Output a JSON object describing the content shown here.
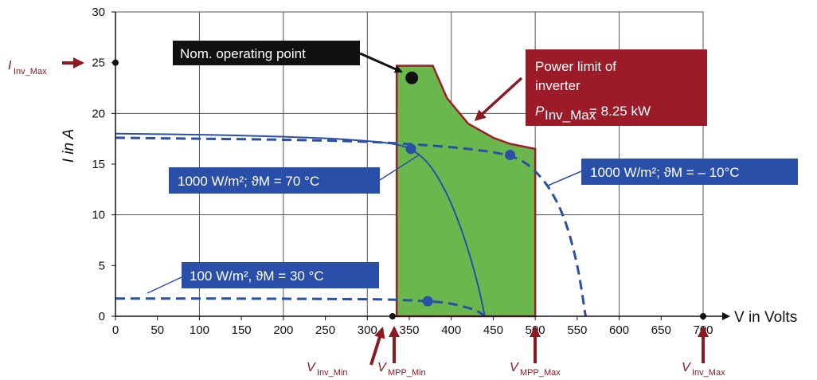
{
  "chart_data": {
    "type": "line",
    "xlabel": "V in Volts",
    "ylabel": "I in A",
    "xlim": [
      0,
      700
    ],
    "ylim": [
      0,
      30
    ],
    "x_ticks": [
      0,
      50,
      100,
      150,
      200,
      250,
      300,
      350,
      400,
      450,
      500,
      550,
      600,
      650,
      700
    ],
    "y_ticks": [
      0,
      5,
      10,
      15,
      20,
      25,
      30
    ],
    "grid": true,
    "series": [
      {
        "name": "1000 W/m²; ϑM = 70 °C",
        "style": "solid",
        "color": "#2a4fa8",
        "points": [
          [
            0,
            18.0
          ],
          [
            100,
            17.9
          ],
          [
            200,
            17.7
          ],
          [
            280,
            17.4
          ],
          [
            330,
            17.0
          ],
          [
            355,
            16.3
          ],
          [
            375,
            14.8
          ],
          [
            395,
            12.0
          ],
          [
            410,
            9.0
          ],
          [
            422,
            6.0
          ],
          [
            432,
            3.0
          ],
          [
            440,
            0
          ]
        ]
      },
      {
        "name": "1000 W/m²; ϑM = – 10°C",
        "style": "dashed",
        "color": "#2a4fa8",
        "points": [
          [
            0,
            17.6
          ],
          [
            100,
            17.5
          ],
          [
            200,
            17.4
          ],
          [
            300,
            17.2
          ],
          [
            380,
            16.8
          ],
          [
            430,
            16.4
          ],
          [
            465,
            15.9
          ],
          [
            490,
            15.0
          ],
          [
            515,
            12.8
          ],
          [
            535,
            9.5
          ],
          [
            550,
            5.0
          ],
          [
            560,
            0
          ]
        ]
      },
      {
        "name": "100 W/m², ϑM = 30 °C",
        "style": "dashed",
        "color": "#2a4fa8",
        "points": [
          [
            0,
            1.75
          ],
          [
            150,
            1.74
          ],
          [
            300,
            1.68
          ],
          [
            340,
            1.6
          ],
          [
            372,
            1.48
          ],
          [
            395,
            1.3
          ],
          [
            415,
            0.95
          ],
          [
            430,
            0.55
          ],
          [
            440,
            0
          ]
        ]
      }
    ],
    "operating_window": {
      "fill": "#6ab84d",
      "stroke": "#a01e2c",
      "outline": [
        [
          335,
          0
        ],
        [
          335,
          24.7
        ],
        [
          378,
          24.7
        ],
        [
          395,
          21.5
        ],
        [
          420,
          19.0
        ],
        [
          450,
          17.6
        ],
        [
          470,
          17.0
        ],
        [
          500,
          16.5
        ],
        [
          500,
          0
        ]
      ]
    },
    "mpp_points": [
      [
        352,
        16.5
      ],
      [
        372,
        1.48
      ],
      [
        470,
        15.9
      ]
    ],
    "nominal_point": [
      353,
      23.5
    ],
    "axis_points": [
      [
        0,
        25
      ],
      [
        330,
        0
      ],
      [
        700,
        0
      ]
    ],
    "callouts": {
      "nominal": "Nom. operating point",
      "power_limit_line1": "Power limit of",
      "power_limit_line2": "inverter",
      "power_limit_symbol": "P",
      "power_limit_sub": "Inv_Max",
      "power_limit_value": " = 8.25 kW",
      "s70": "1000 W/m²; ϑM = 70 °C",
      "s_minus10": "1000 W/m²; ϑM = – 10°C",
      "s100": "100 W/m², ϑM = 30 °C"
    },
    "markers": {
      "i_inv_max": {
        "symbol": "I",
        "sub": "Inv_Max",
        "value": 25
      },
      "v_inv_min": {
        "symbol": "V",
        "sub": "Inv_Min",
        "value": 330
      },
      "v_mpp_min": {
        "symbol": "V",
        "sub": "MPP_Min",
        "value": 335
      },
      "v_mpp_max": {
        "symbol": "V",
        "sub": "MPP_Max",
        "value": 500
      },
      "v_inv_max": {
        "symbol": "V",
        "sub": "Inv_Max",
        "value": 700
      }
    },
    "colors": {
      "callout_dark": "#111111",
      "callout_blue": "#2a4fa8",
      "callout_red": "#9b1b28",
      "marker_red": "#8b1a22"
    }
  }
}
